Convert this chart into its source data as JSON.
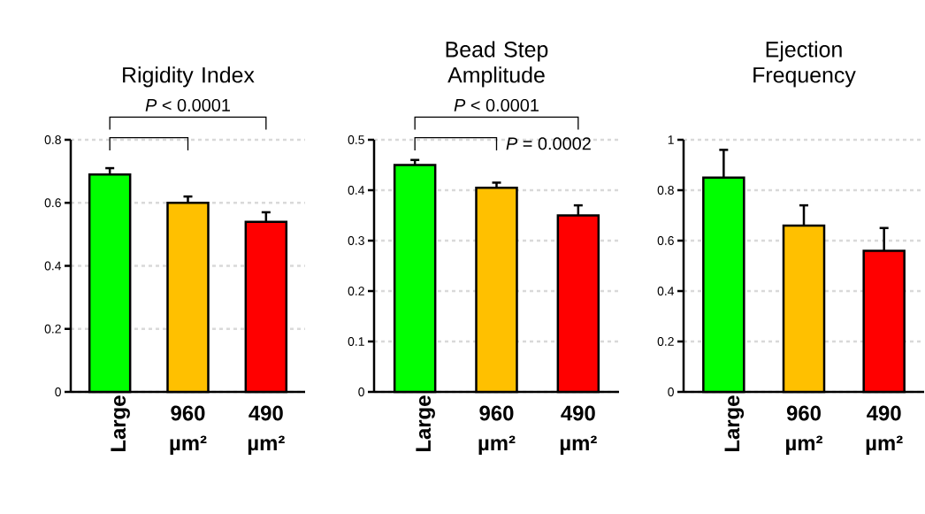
{
  "chart_data": [
    {
      "type": "bar",
      "title": "Rigidity Index",
      "categories": [
        "Large",
        "960 µm²",
        "490 µm²"
      ],
      "values": [
        0.69,
        0.6,
        0.54
      ],
      "errors": [
        0.02,
        0.02,
        0.03
      ],
      "colors": [
        "#00ff00",
        "#ffc000",
        "#ff0000"
      ],
      "ylim": [
        0,
        0.8
      ],
      "yticks": [
        0,
        0.2,
        0.4,
        0.6,
        0.8
      ],
      "grid": "y",
      "annotations": [
        "*P* < 0.0001"
      ]
    },
    {
      "type": "bar",
      "title": "Bead Step Amplitude",
      "categories": [
        "Large",
        "960 µm²",
        "490 µm²"
      ],
      "values": [
        0.45,
        0.405,
        0.35
      ],
      "errors": [
        0.01,
        0.01,
        0.02
      ],
      "colors": [
        "#00ff00",
        "#ffc000",
        "#ff0000"
      ],
      "ylim": [
        0,
        0.5
      ],
      "yticks": [
        0,
        0.1,
        0.2,
        0.3,
        0.4,
        0.5
      ],
      "grid": "y",
      "annotations": [
        "*P* < 0.0001",
        "*P* = 0.0002"
      ]
    },
    {
      "type": "bar",
      "title": "Ejection Frequency",
      "categories": [
        "Large",
        "960 µm²",
        "490 µm²"
      ],
      "values": [
        0.85,
        0.66,
        0.56
      ],
      "errors": [
        0.11,
        0.08,
        0.09
      ],
      "colors": [
        "#00ff00",
        "#ffc000",
        "#ff0000"
      ],
      "ylim": [
        0,
        1
      ],
      "yticks": [
        0,
        0.2,
        0.4,
        0.6,
        0.8,
        1
      ],
      "grid": "y"
    }
  ]
}
